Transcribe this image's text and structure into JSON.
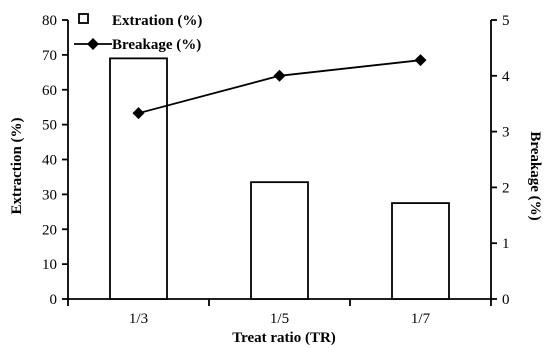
{
  "chart_data": {
    "type": "bar+line",
    "categories": [
      "1/3",
      "1/5",
      "1/7"
    ],
    "series": [
      {
        "name": "Extration (%)",
        "type": "bar",
        "axis": "left",
        "values": [
          69,
          33.5,
          27.5
        ]
      },
      {
        "name": "Breakage (%)",
        "type": "line",
        "axis": "right",
        "marker": "diamond",
        "values": [
          3.33,
          4.0,
          4.28
        ]
      }
    ],
    "xlabel": "Treat ratio (TR)",
    "ylabel": "Extraction (%)",
    "y2label": "Breakage (%)",
    "ylim": [
      0,
      80
    ],
    "y2lim": [
      0,
      5
    ],
    "yticks": [
      "0",
      "10",
      "20",
      "30",
      "40",
      "50",
      "60",
      "70",
      "80"
    ],
    "y2ticks": [
      "0",
      "1",
      "2",
      "3",
      "4",
      "5"
    ],
    "grid": false,
    "legend_position": "top-left"
  }
}
